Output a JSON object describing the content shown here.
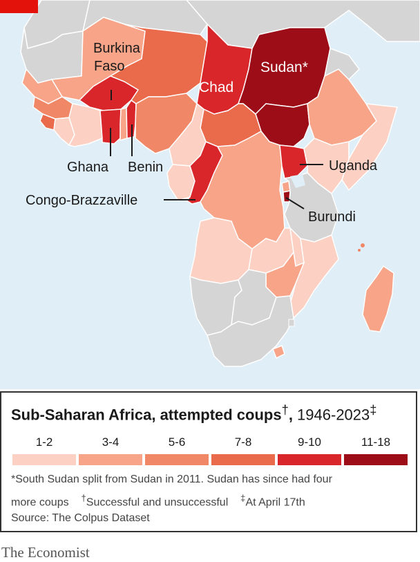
{
  "map": {
    "colors": {
      "sea": "#dfeef7",
      "no_data": "#d5d5d5",
      "c1_2": "#fcd0c2",
      "c3_4": "#f7a488",
      "c5_6": "#f08868",
      "c7_8": "#ea6a4c",
      "c9_10": "#d9262a",
      "c11_18": "#9c0d17",
      "border": "#ffffff"
    },
    "labels": {
      "burkina_1": "Burkina",
      "burkina_2": "Faso",
      "chad": "Chad",
      "sudan": "Sudan*",
      "uganda": "Uganda",
      "ghana": "Ghana",
      "benin": "Benin",
      "congo": "Congo-Brazzaville",
      "burundi": "Burundi"
    }
  },
  "legend": {
    "title_bold": "Sub-Saharan Africa, attempted coups",
    "title_dagger": "†",
    "title_comma": ",",
    "title_years": " 1946-2023",
    "title_ddagger": "‡",
    "bins": [
      {
        "label": "1-2",
        "color": "#fcd0c2"
      },
      {
        "label": "3-4",
        "color": "#f7a488"
      },
      {
        "label": "5-6",
        "color": "#f08868"
      },
      {
        "label": "7-8",
        "color": "#ea6a4c"
      },
      {
        "label": "9-10",
        "color": "#d9262a"
      },
      {
        "label": "11-18",
        "color": "#9c0d17"
      }
    ],
    "note_line1": "*South Sudan split from Sudan in 2011. Sudan has since had four",
    "note_line2": "more coups",
    "note_dagger": "†",
    "note_dagger_text": "Successful and unsuccessful",
    "note_ddagger": "‡",
    "note_ddagger_text": "At April 17th",
    "source": "Source: The Colpus Dataset"
  },
  "brand": "The Economist"
}
